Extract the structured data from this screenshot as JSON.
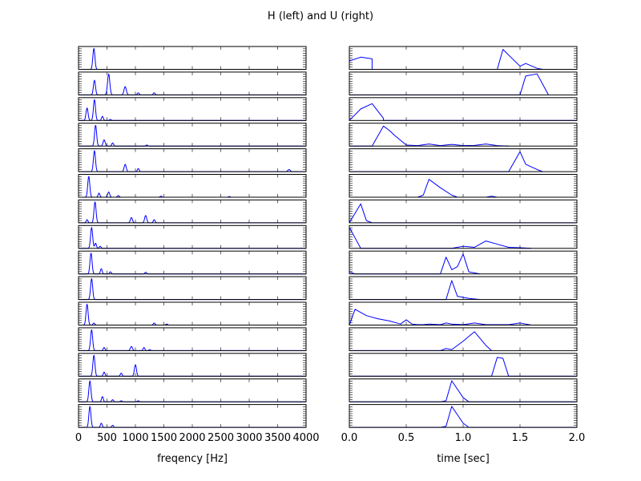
{
  "figure": {
    "title": "H (left) and U (right)"
  },
  "chart_data": [
    {
      "type": "line",
      "name": "H",
      "xlabel": "freqency [Hz]",
      "ylabel": "",
      "xlim": [
        0,
        4000
      ],
      "xticks": [
        0,
        500,
        1000,
        1500,
        2000,
        2500,
        3000,
        3500,
        4000
      ],
      "xtick_labels": [
        "0",
        "500",
        "1000",
        "1500",
        "2000",
        "2500",
        "3000",
        "3500",
        "4000"
      ],
      "ylim": [
        0,
        1
      ],
      "grid": false,
      "panels": [
        {
          "peaks": [
            [
              270,
              1.0,
              18
            ]
          ]
        },
        {
          "peaks": [
            [
              280,
              0.7,
              18
            ],
            [
              530,
              1.0,
              20
            ],
            [
              820,
              0.4,
              20
            ],
            [
              1050,
              0.1,
              15
            ],
            [
              1330,
              0.1,
              15
            ]
          ]
        },
        {
          "peaks": [
            [
              150,
              0.6,
              18
            ],
            [
              280,
              1.0,
              18
            ],
            [
              420,
              0.2,
              15
            ],
            [
              560,
              0.05,
              15
            ]
          ]
        },
        {
          "peaks": [
            [
              300,
              1.0,
              18
            ],
            [
              450,
              0.3,
              18
            ],
            [
              600,
              0.15,
              15
            ],
            [
              1200,
              0.05,
              15
            ]
          ]
        },
        {
          "peaks": [
            [
              280,
              1.0,
              18
            ],
            [
              820,
              0.35,
              18
            ],
            [
              1050,
              0.15,
              15
            ],
            [
              3700,
              0.1,
              20
            ]
          ]
        },
        {
          "peaks": [
            [
              180,
              1.0,
              18
            ],
            [
              360,
              0.2,
              15
            ],
            [
              530,
              0.25,
              18
            ],
            [
              700,
              0.08,
              15
            ],
            [
              1450,
              0.05,
              15
            ],
            [
              2650,
              0.03,
              15
            ]
          ]
        },
        {
          "peaks": [
            [
              150,
              0.15,
              15
            ],
            [
              290,
              1.0,
              18
            ],
            [
              930,
              0.25,
              18
            ],
            [
              1180,
              0.35,
              18
            ],
            [
              1330,
              0.15,
              15
            ]
          ]
        },
        {
          "peaks": [
            [
              230,
              1.0,
              18
            ],
            [
              300,
              0.25,
              15
            ],
            [
              380,
              0.1,
              15
            ]
          ]
        },
        {
          "peaks": [
            [
              220,
              1.0,
              18
            ],
            [
              400,
              0.25,
              15
            ],
            [
              560,
              0.1,
              15
            ],
            [
              1180,
              0.08,
              15
            ]
          ]
        },
        {
          "peaks": [
            [
              230,
              1.0,
              18
            ]
          ]
        },
        {
          "peaks": [
            [
              150,
              1.0,
              18
            ],
            [
              270,
              0.1,
              15
            ],
            [
              1330,
              0.1,
              15
            ],
            [
              1550,
              0.05,
              15
            ]
          ]
        },
        {
          "peaks": [
            [
              230,
              1.0,
              18
            ],
            [
              450,
              0.15,
              15
            ],
            [
              930,
              0.2,
              18
            ],
            [
              1150,
              0.15,
              15
            ],
            [
              1250,
              0.05,
              15
            ]
          ]
        },
        {
          "peaks": [
            [
              270,
              1.0,
              18
            ],
            [
              450,
              0.2,
              15
            ],
            [
              750,
              0.15,
              15
            ],
            [
              1000,
              0.55,
              18
            ]
          ]
        },
        {
          "peaks": [
            [
              200,
              1.0,
              18
            ],
            [
              420,
              0.25,
              15
            ],
            [
              600,
              0.1,
              15
            ],
            [
              750,
              0.05,
              15
            ],
            [
              1050,
              0.05,
              15
            ]
          ]
        },
        {
          "peaks": [
            [
              200,
              1.0,
              18
            ],
            [
              400,
              0.2,
              15
            ],
            [
              600,
              0.1,
              15
            ]
          ]
        }
      ]
    },
    {
      "type": "line",
      "name": "U",
      "xlabel": "time [sec]",
      "ylabel": "",
      "xlim": [
        0,
        2
      ],
      "xticks": [
        0,
        0.5,
        1,
        1.5,
        2
      ],
      "xtick_labels": [
        "0.0",
        "0.5",
        "1.0",
        "1.5",
        "2.0"
      ],
      "ylim": [
        0,
        1
      ],
      "grid": false,
      "panels": [
        {
          "x": [
            0.0,
            0.1,
            0.2,
            0.2,
            1.3,
            1.35,
            1.5,
            1.55,
            1.65,
            1.7
          ],
          "y": [
            0.4,
            0.58,
            0.5,
            0,
            0,
            0.95,
            0.15,
            0.28,
            0.05,
            0
          ]
        },
        {
          "x": [
            0.0,
            1.5,
            1.55,
            1.65,
            1.7,
            1.75
          ],
          "y": [
            0,
            0,
            0.9,
            1.0,
            0.5,
            0
          ]
        },
        {
          "x": [
            0.0,
            0.1,
            0.2,
            0.3,
            0.3,
            2.0
          ],
          "y": [
            0,
            0.55,
            0.8,
            0.1,
            0,
            0
          ]
        },
        {
          "x": [
            0.0,
            0.2,
            0.3,
            0.35,
            0.4,
            0.5,
            0.6,
            0.7,
            0.8,
            0.9,
            1.0,
            1.1,
            1.2,
            1.3,
            1.4
          ],
          "y": [
            0,
            0,
            0.95,
            0.75,
            0.5,
            0.05,
            0.02,
            0.1,
            0.02,
            0.08,
            0.02,
            0.03,
            0.1,
            0.02,
            0
          ]
        },
        {
          "x": [
            0.0,
            1.4,
            1.5,
            1.55,
            1.65,
            1.7
          ],
          "y": [
            0,
            0,
            0.95,
            0.35,
            0.1,
            0
          ]
        },
        {
          "x": [
            0.0,
            0.6,
            0.65,
            0.7,
            0.8,
            0.9,
            0.95,
            1.2,
            1.25,
            1.3,
            2.0
          ],
          "y": [
            0,
            0,
            0.1,
            0.85,
            0.45,
            0.1,
            0,
            0,
            0.05,
            0,
            0
          ]
        },
        {
          "x": [
            0.0,
            0.1,
            0.15,
            0.2,
            2.0
          ],
          "y": [
            0,
            0.9,
            0.1,
            0,
            0
          ]
        },
        {
          "x": [
            0.0,
            0.05,
            0.1,
            0.9,
            1.0,
            1.1,
            1.2,
            1.3,
            1.4,
            1.5,
            1.6
          ],
          "y": [
            1.0,
            0.5,
            0,
            0,
            0.1,
            0.05,
            0.35,
            0.2,
            0.05,
            0.03,
            0
          ]
        },
        {
          "x": [
            0.0,
            0.05,
            0.8,
            0.85,
            0.9,
            0.95,
            1.0,
            1.05,
            1.15
          ],
          "y": [
            0.1,
            0,
            0,
            0.8,
            0.2,
            0.35,
            0.95,
            0.1,
            0
          ]
        },
        {
          "x": [
            0.0,
            0.85,
            0.9,
            0.95,
            1.05,
            1.15
          ],
          "y": [
            0,
            0,
            0.9,
            0.15,
            0.05,
            0
          ]
        },
        {
          "x": [
            0.0,
            0.05,
            0.15,
            0.25,
            0.35,
            0.45,
            0.5,
            0.55,
            0.6,
            0.65,
            0.7,
            0.8,
            0.85,
            0.9,
            1.0,
            1.1,
            1.2,
            1.3,
            1.4,
            1.5,
            1.55,
            1.6
          ],
          "y": [
            0,
            0.75,
            0.45,
            0.3,
            0.2,
            0.05,
            0.25,
            0.05,
            0.02,
            0.02,
            0.05,
            0.02,
            0.1,
            0.05,
            0.02,
            0.1,
            0.02,
            0.02,
            0.02,
            0.1,
            0.05,
            0
          ]
        },
        {
          "x": [
            0.0,
            0.8,
            0.85,
            0.9,
            1.0,
            1.1,
            1.2,
            1.25
          ],
          "y": [
            0,
            0,
            0.1,
            0.05,
            0.45,
            0.9,
            0.25,
            0
          ]
        },
        {
          "x": [
            0.0,
            1.25,
            1.3,
            1.35,
            1.4,
            2.0
          ],
          "y": [
            0,
            0,
            0.9,
            0.85,
            0,
            0
          ]
        },
        {
          "x": [
            0.0,
            0.8,
            0.85,
            0.9,
            0.95,
            1.0,
            1.05,
            2.0
          ],
          "y": [
            0,
            0,
            0.05,
            1.0,
            0.6,
            0.2,
            0,
            0
          ]
        },
        {
          "x": [
            0.0,
            0.8,
            0.85,
            0.9,
            0.95,
            1.0,
            1.05,
            2.0
          ],
          "y": [
            0,
            0,
            0.05,
            1.0,
            0.6,
            0.2,
            0,
            0
          ]
        }
      ]
    }
  ]
}
